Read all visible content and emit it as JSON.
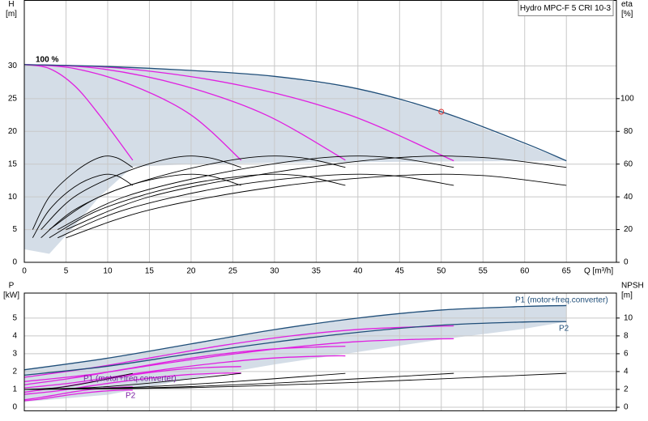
{
  "chart_data": [
    {
      "type": "line",
      "title": "Hydro MPC-F 5 CRI 10-3",
      "ylabel": "H",
      "yunit": "[m]",
      "y2label": "eta",
      "y2unit": "[%]",
      "xlabel": "Q [m³/h]",
      "annotations": [
        "100 %"
      ],
      "xlim": [
        0,
        71
      ],
      "xticks": [
        0,
        5,
        10,
        15,
        20,
        25,
        30,
        35,
        40,
        45,
        50,
        55,
        60,
        65
      ],
      "ylim": [
        0,
        40
      ],
      "yticks": [
        0,
        5,
        10,
        15,
        20,
        25,
        30
      ],
      "y2lim": [
        0,
        160
      ],
      "y2ticks": [
        0,
        20,
        40,
        60,
        80,
        100
      ],
      "grid": true,
      "area": {
        "color": "#c9d5e1",
        "x": [
          0,
          3,
          6,
          9,
          13,
          20,
          30,
          40,
          50,
          65
        ],
        "upper": [
          30.2,
          30.2,
          30.1,
          30,
          29.8,
          29.3,
          28.4,
          26.5,
          23,
          15.5
        ],
        "lower": [
          2.0,
          1.3,
          5.5,
          10,
          14.6,
          15,
          15.2,
          15.3,
          15.4,
          15.5
        ]
      },
      "series": [
        {
          "color": "#e020e0",
          "x": [
            0,
            3,
            6,
            9,
            13
          ],
          "values": [
            30.2,
            29.6,
            27,
            22.5,
            15.6
          ]
        },
        {
          "color": "#e020e0",
          "x": [
            0,
            6,
            13,
            20,
            26
          ],
          "values": [
            30.2,
            29.6,
            27,
            22.5,
            15.6
          ]
        },
        {
          "color": "#e020e0",
          "x": [
            0,
            9,
            19,
            29,
            38.5
          ],
          "values": [
            30.2,
            29.6,
            27,
            22.5,
            15.6
          ]
        },
        {
          "color": "#e020e0",
          "x": [
            0,
            12,
            26,
            39,
            51.5
          ],
          "values": [
            30.2,
            29.6,
            27,
            22.5,
            15.5
          ]
        },
        {
          "color": "#1f4e79",
          "x": [
            0,
            10,
            20,
            30,
            40,
            50,
            60,
            65
          ],
          "values": [
            30.2,
            29.9,
            29.3,
            28.4,
            26.5,
            23,
            18.2,
            15.5
          ]
        },
        {
          "color": "#000000",
          "axis": "y2",
          "x": [
            1,
            3,
            6,
            9,
            11,
            13
          ],
          "values": [
            20,
            40,
            55,
            64,
            64,
            58
          ]
        },
        {
          "color": "#000000",
          "axis": "y2",
          "x": [
            2,
            6,
            12,
            18,
            22,
            26
          ],
          "values": [
            20,
            40,
            55,
            64,
            64,
            58
          ]
        },
        {
          "color": "#000000",
          "axis": "y2",
          "x": [
            3,
            9,
            18,
            27,
            33,
            38.5
          ],
          "values": [
            20,
            40,
            55,
            64,
            64,
            58
          ]
        },
        {
          "color": "#000000",
          "axis": "y2",
          "x": [
            4,
            12,
            24,
            36,
            44,
            51.5
          ],
          "values": [
            20,
            40,
            55,
            64,
            64,
            58
          ]
        },
        {
          "color": "#000000",
          "axis": "y2",
          "x": [
            5,
            15,
            30,
            45,
            55,
            65
          ],
          "values": [
            20,
            40,
            55,
            64,
            64,
            58
          ]
        },
        {
          "color": "#000000",
          "axis": "y2",
          "x": [
            1,
            3,
            6,
            9,
            11,
            13
          ],
          "values": [
            15,
            32,
            46,
            53,
            53,
            47
          ]
        },
        {
          "color": "#000000",
          "axis": "y2",
          "x": [
            2,
            6,
            12,
            18,
            22,
            26
          ],
          "values": [
            15,
            32,
            46,
            53,
            53,
            47
          ]
        },
        {
          "color": "#000000",
          "axis": "y2",
          "x": [
            3,
            9,
            18,
            27,
            33,
            38.5
          ],
          "values": [
            15,
            32,
            46,
            53,
            53,
            47
          ]
        },
        {
          "color": "#000000",
          "axis": "y2",
          "x": [
            4,
            12,
            24,
            36,
            44,
            51.5
          ],
          "values": [
            15,
            32,
            46,
            53,
            53,
            47
          ]
        },
        {
          "color": "#000000",
          "axis": "y2",
          "x": [
            5,
            15,
            30,
            45,
            55,
            65
          ],
          "values": [
            15,
            32,
            46,
            53,
            53,
            47
          ]
        },
        {
          "color": "#e03030",
          "marker": "circle",
          "x": [
            50
          ],
          "values": [
            23
          ]
        }
      ]
    },
    {
      "type": "line",
      "ylabel": "P",
      "yunit": "[kW]",
      "y2label": "NPSH",
      "y2unit": "[m]",
      "annotations": [
        "P1 (motor+freq.converter)",
        "P2",
        "P1 (motor+freq.converter)",
        "P2"
      ],
      "xlim": [
        0,
        71
      ],
      "xticks": [
        0,
        5,
        10,
        15,
        20,
        25,
        30,
        35,
        40,
        45,
        50,
        55,
        60,
        65
      ],
      "ylim": [
        -0.2,
        6.4
      ],
      "yticks": [
        0,
        1,
        2,
        3,
        4,
        5
      ],
      "y2lim": [
        -0.4,
        12.8
      ],
      "y2ticks": [
        0,
        2,
        4,
        6,
        8,
        10
      ],
      "grid": true,
      "area": {
        "color": "#c9d5e1",
        "x": [
          0,
          10,
          20,
          30,
          40,
          50,
          60,
          65
        ],
        "upper": [
          2.1,
          2.75,
          3.55,
          4.35,
          5.0,
          5.45,
          5.65,
          5.7
        ],
        "lower": [
          0.3,
          0.7,
          1.6,
          2.4,
          3.1,
          3.8,
          4.4,
          4.8
        ]
      },
      "series": [
        {
          "color": "#e020e0",
          "x": [
            0,
            2,
            4,
            6,
            8,
            10,
            12,
            13
          ],
          "values": [
            0.42,
            0.55,
            0.71,
            0.87,
            1.0,
            1.09,
            1.13,
            1.14
          ]
        },
        {
          "color": "#e020e0",
          "x": [
            0,
            4,
            8,
            12,
            16,
            20,
            24,
            26
          ],
          "values": [
            0.84,
            1.1,
            1.42,
            1.74,
            2.0,
            2.18,
            2.26,
            2.28
          ]
        },
        {
          "color": "#e020e0",
          "x": [
            0,
            6,
            12,
            18,
            24,
            30,
            36,
            38.5
          ],
          "values": [
            1.26,
            1.65,
            2.13,
            2.61,
            3.0,
            3.27,
            3.39,
            3.42
          ]
        },
        {
          "color": "#e020e0",
          "x": [
            0,
            8,
            16,
            24,
            32,
            40,
            48,
            51.5
          ],
          "values": [
            1.68,
            2.2,
            2.84,
            3.48,
            4.0,
            4.36,
            4.52,
            4.56
          ]
        },
        {
          "color": "#e020e0",
          "x": [
            0,
            2,
            4,
            6,
            8,
            10,
            12,
            13
          ],
          "values": [
            0.36,
            0.46,
            0.6,
            0.73,
            0.84,
            0.92,
            0.96,
            0.96
          ]
        },
        {
          "color": "#e020e0",
          "x": [
            0,
            4,
            8,
            12,
            16,
            20,
            24,
            26
          ],
          "values": [
            0.72,
            0.92,
            1.2,
            1.46,
            1.68,
            1.84,
            1.91,
            1.92
          ]
        },
        {
          "color": "#e020e0",
          "x": [
            0,
            6,
            12,
            18,
            24,
            30,
            36,
            38.5
          ],
          "values": [
            1.08,
            1.38,
            1.8,
            2.19,
            2.52,
            2.76,
            2.87,
            2.88
          ]
        },
        {
          "color": "#e020e0",
          "x": [
            0,
            8,
            16,
            24,
            32,
            40,
            48,
            51.5
          ],
          "values": [
            1.44,
            1.84,
            2.4,
            2.92,
            3.36,
            3.68,
            3.82,
            3.84
          ]
        },
        {
          "color": "#1f4e79",
          "x": [
            0,
            10,
            20,
            30,
            40,
            50,
            60,
            65
          ],
          "values": [
            2.1,
            2.75,
            3.55,
            4.35,
            5.0,
            5.45,
            5.65,
            5.7
          ]
        },
        {
          "color": "#1f4e79",
          "x": [
            0,
            10,
            20,
            30,
            40,
            50,
            60,
            65
          ],
          "values": [
            1.8,
            2.3,
            3.0,
            3.65,
            4.2,
            4.6,
            4.78,
            4.8
          ]
        },
        {
          "color": "#000000",
          "axis": "y2",
          "x": [
            0,
            4,
            8,
            13
          ],
          "values": [
            2.0,
            2.2,
            2.8,
            3.8
          ]
        },
        {
          "color": "#000000",
          "axis": "y2",
          "x": [
            0,
            8,
            16,
            26
          ],
          "values": [
            2.0,
            2.2,
            2.8,
            3.8
          ]
        },
        {
          "color": "#000000",
          "axis": "y2",
          "x": [
            0,
            12,
            24,
            38.5
          ],
          "values": [
            2.0,
            2.2,
            2.8,
            3.8
          ]
        },
        {
          "color": "#000000",
          "axis": "y2",
          "x": [
            0,
            16,
            32,
            51.5
          ],
          "values": [
            2.0,
            2.2,
            2.8,
            3.8
          ]
        },
        {
          "color": "#000000",
          "axis": "y2",
          "x": [
            0,
            20,
            40,
            65
          ],
          "values": [
            2.0,
            2.2,
            2.8,
            3.8
          ]
        }
      ]
    }
  ]
}
